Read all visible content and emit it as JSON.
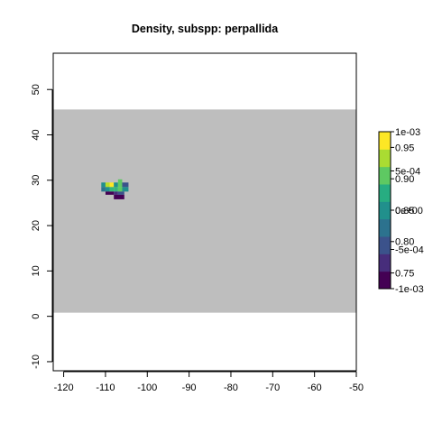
{
  "chart_data": {
    "type": "heatmap",
    "title": "Density, subspp: perpallida",
    "xlabel": "",
    "ylabel": "",
    "xlim": [
      -122.5,
      -50
    ],
    "ylim": [
      -12,
      58
    ],
    "x_ticks": [
      "-120",
      "-110",
      "-100",
      "-90",
      "-80",
      "-70",
      "-60",
      "-50"
    ],
    "x_tick_values": [
      -120,
      -110,
      -100,
      -90,
      -80,
      -70,
      -60,
      -50
    ],
    "y_ticks": [
      "-10",
      "0",
      "10",
      "20",
      "30",
      "40",
      "50"
    ],
    "y_tick_values": [
      -10,
      0,
      10,
      20,
      30,
      40,
      50
    ],
    "background_band": {
      "color": "#bebebe",
      "y_range": [
        0.8,
        45.6
      ]
    },
    "cells": [
      {
        "x0": -111,
        "x1": -110,
        "y0": 28.5,
        "y1": 29.5,
        "color": "#21908c"
      },
      {
        "x0": -110,
        "x1": -109,
        "y0": 28.5,
        "y1": 29.5,
        "color": "#b8de29"
      },
      {
        "x0": -109,
        "x1": -108,
        "y0": 28.5,
        "y1": 29.5,
        "color": "#fde725"
      },
      {
        "x0": -108,
        "x1": -107,
        "y0": 28.5,
        "y1": 29.5,
        "color": "#21908c"
      },
      {
        "x0": -107,
        "x1": -106,
        "y0": 28.5,
        "y1": 30.2,
        "color": "#5ec962"
      },
      {
        "x0": -106,
        "x1": -104.5,
        "y0": 28.5,
        "y1": 29.5,
        "color": "#3b528b"
      },
      {
        "x0": -111,
        "x1": -110,
        "y0": 27.5,
        "y1": 28.5,
        "color": "#2c728e"
      },
      {
        "x0": -110,
        "x1": -109,
        "y0": 27.5,
        "y1": 28.5,
        "color": "#21908c"
      },
      {
        "x0": -109,
        "x1": -108,
        "y0": 27.5,
        "y1": 28.5,
        "color": "#35b779"
      },
      {
        "x0": -108,
        "x1": -107,
        "y0": 27.5,
        "y1": 28.5,
        "color": "#35b779"
      },
      {
        "x0": -107,
        "x1": -106,
        "y0": 27.5,
        "y1": 28.5,
        "color": "#5ec962"
      },
      {
        "x0": -106,
        "x1": -104.5,
        "y0": 27.5,
        "y1": 28.5,
        "color": "#21908c"
      },
      {
        "x0": -110,
        "x1": -108,
        "y0": 26.8,
        "y1": 27.5,
        "color": "#440154"
      },
      {
        "x0": -108,
        "x1": -107,
        "y0": 26.8,
        "y1": 27.5,
        "color": "#472d7b"
      },
      {
        "x0": -107,
        "x1": -105.5,
        "y0": 26.8,
        "y1": 27.5,
        "color": "#3b528b"
      },
      {
        "x0": -108,
        "x1": -105.5,
        "y0": 25.8,
        "y1": 26.8,
        "color": "#440154"
      }
    ],
    "legend": {
      "position": "right",
      "colors": [
        "#440154",
        "#472d7b",
        "#3b528b",
        "#2c728e",
        "#21908c",
        "#27ad81",
        "#5ec962",
        "#aadc32",
        "#fde725"
      ],
      "labels_upper": [
        {
          "text": "1e-03",
          "frac": 1.0
        },
        {
          "text": "5e-04",
          "frac": 0.75
        },
        {
          "text": "0e+00",
          "frac": 0.5
        },
        {
          "text": "-5e-04",
          "frac": 0.25
        },
        {
          "text": "-1e-03",
          "frac": 0.0
        }
      ],
      "labels_lower": [
        {
          "text": "0.95",
          "frac": 0.9
        },
        {
          "text": "0.90",
          "frac": 0.7
        },
        {
          "text": "0.85",
          "frac": 0.5
        },
        {
          "text": "0.80",
          "frac": 0.3
        },
        {
          "text": "0.75",
          "frac": 0.1
        }
      ]
    }
  }
}
